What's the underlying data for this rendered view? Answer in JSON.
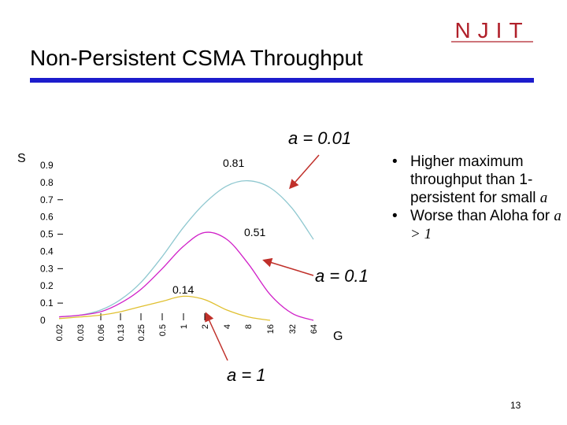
{
  "slide": {
    "title": "Non-Persistent CSMA Throughput",
    "logo_text": "NJIT",
    "page_number": "13",
    "bullets": [
      {
        "text": "Higher maximum throughput than 1-persistent for small",
        "italic_tail": "a"
      },
      {
        "text": "Worse than Aloha for",
        "italic_tail": "a > 1"
      }
    ],
    "colors": {
      "rule": "#1c1ccc",
      "arrow": "#c0302a",
      "logo": "#b0202a"
    }
  },
  "chart_data": {
    "type": "line",
    "xlabel": "G",
    "ylabel": "S",
    "x_ticks": [
      "0.02",
      "0.03",
      "0.06",
      "0.13",
      "0.25",
      "0.5",
      "1",
      "2",
      "4",
      "8",
      "16",
      "32",
      "64"
    ],
    "x_scale": "log2",
    "y_ticks": [
      "0",
      "0.1",
      "0.2",
      "0.3",
      "0.4",
      "0.5",
      "0.6",
      "0.7",
      "0.8",
      "0.9"
    ],
    "ylim": [
      0,
      0.9
    ],
    "series": [
      {
        "name": "a = 0.01",
        "color": "#8fc8d0",
        "peak_label": "0.81",
        "peak": 0.81,
        "points": [
          [
            0.02,
            0.02
          ],
          [
            0.03,
            0.03
          ],
          [
            0.06,
            0.06
          ],
          [
            0.13,
            0.12
          ],
          [
            0.25,
            0.22
          ],
          [
            0.5,
            0.37
          ],
          [
            1,
            0.54
          ],
          [
            2,
            0.68
          ],
          [
            4,
            0.78
          ],
          [
            8,
            0.81
          ],
          [
            16,
            0.77
          ],
          [
            32,
            0.65
          ],
          [
            64,
            0.47
          ]
        ]
      },
      {
        "name": "a = 0.1",
        "color": "#d020c8",
        "peak_label": "0.51",
        "peak": 0.51,
        "points": [
          [
            0.02,
            0.02
          ],
          [
            0.03,
            0.03
          ],
          [
            0.06,
            0.05
          ],
          [
            0.13,
            0.1
          ],
          [
            0.25,
            0.18
          ],
          [
            0.5,
            0.3
          ],
          [
            1,
            0.43
          ],
          [
            2,
            0.51
          ],
          [
            4,
            0.47
          ],
          [
            8,
            0.33
          ],
          [
            16,
            0.15
          ],
          [
            32,
            0.04
          ],
          [
            64,
            0.0
          ]
        ]
      },
      {
        "name": "a = 1",
        "color": "#e0c030",
        "peak_label": "0.14",
        "peak": 0.14,
        "points": [
          [
            0.02,
            0.01
          ],
          [
            0.03,
            0.02
          ],
          [
            0.06,
            0.03
          ],
          [
            0.13,
            0.05
          ],
          [
            0.25,
            0.08
          ],
          [
            0.5,
            0.11
          ],
          [
            1,
            0.14
          ],
          [
            2,
            0.12
          ],
          [
            4,
            0.06
          ],
          [
            8,
            0.02
          ],
          [
            16,
            0.0
          ]
        ]
      }
    ]
  }
}
